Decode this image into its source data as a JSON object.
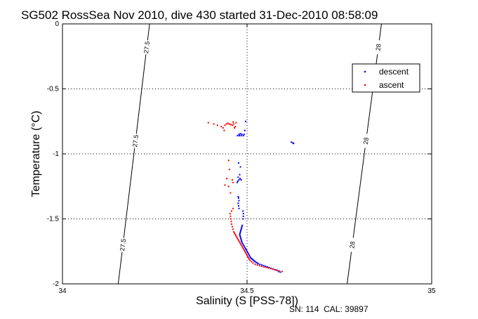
{
  "chart_data": {
    "type": "scatter",
    "title": "SG502 RossSea Nov 2010, dive 430 started 31-Dec-2010 08:58:09",
    "xlabel": "Salinity (S [PSS-78])",
    "ylabel": "Temperature (°C)",
    "xlim": [
      34,
      35
    ],
    "ylim": [
      -2,
      0
    ],
    "xticks": [
      "34",
      "34.5",
      "35"
    ],
    "yticks": [
      "0",
      "-0.5",
      "-1",
      "-1.5",
      "-2"
    ],
    "grid": true,
    "legend_position": "top-right",
    "footer": "SN: 114  CAL: 39897",
    "isopycnals": [
      {
        "label": "27.5",
        "points": [
          [
            34.151,
            -2.0
          ],
          [
            34.236,
            0.0
          ]
        ]
      },
      {
        "label": "28",
        "points": [
          [
            34.771,
            -2.0
          ],
          [
            34.864,
            0.0
          ]
        ]
      }
    ],
    "series": [
      {
        "name": "descent",
        "color": "#0000ff",
        "points": [
          [
            34.59,
            -1.91
          ],
          [
            34.585,
            -1.905
          ],
          [
            34.58,
            -1.895
          ],
          [
            34.575,
            -1.89
          ],
          [
            34.57,
            -1.885
          ],
          [
            34.565,
            -1.88
          ],
          [
            34.56,
            -1.875
          ],
          [
            34.555,
            -1.87
          ],
          [
            34.55,
            -1.865
          ],
          [
            34.545,
            -1.86
          ],
          [
            34.54,
            -1.855
          ],
          [
            34.535,
            -1.85
          ],
          [
            34.53,
            -1.845
          ],
          [
            34.528,
            -1.84
          ],
          [
            34.525,
            -1.835
          ],
          [
            34.522,
            -1.83
          ],
          [
            34.52,
            -1.825
          ],
          [
            34.518,
            -1.82
          ],
          [
            34.516,
            -1.815
          ],
          [
            34.514,
            -1.81
          ],
          [
            34.512,
            -1.805
          ],
          [
            34.51,
            -1.8
          ],
          [
            34.508,
            -1.79
          ],
          [
            34.506,
            -1.78
          ],
          [
            34.504,
            -1.77
          ],
          [
            34.502,
            -1.76
          ],
          [
            34.5,
            -1.75
          ],
          [
            34.498,
            -1.74
          ],
          [
            34.496,
            -1.73
          ],
          [
            34.494,
            -1.72
          ],
          [
            34.492,
            -1.71
          ],
          [
            34.49,
            -1.7
          ],
          [
            34.488,
            -1.69
          ],
          [
            34.486,
            -1.68
          ],
          [
            34.485,
            -1.67
          ],
          [
            34.484,
            -1.66
          ],
          [
            34.483,
            -1.65
          ],
          [
            34.482,
            -1.64
          ],
          [
            34.481,
            -1.63
          ],
          [
            34.48,
            -1.62
          ],
          [
            34.481,
            -1.61
          ],
          [
            34.482,
            -1.6
          ],
          [
            34.483,
            -1.59
          ],
          [
            34.484,
            -1.58
          ],
          [
            34.485,
            -1.57
          ],
          [
            34.486,
            -1.56
          ],
          [
            34.487,
            -1.55
          ],
          [
            34.489,
            -1.5
          ],
          [
            34.49,
            -1.48
          ],
          [
            34.49,
            -1.46
          ],
          [
            34.489,
            -1.44
          ],
          [
            34.478,
            -1.42
          ],
          [
            34.477,
            -1.4
          ],
          [
            34.476,
            -1.38
          ],
          [
            34.478,
            -1.36
          ],
          [
            34.477,
            -1.34
          ],
          [
            34.476,
            -1.33
          ],
          [
            34.473,
            -1.22
          ],
          [
            34.475,
            -1.21
          ],
          [
            34.478,
            -1.2
          ],
          [
            34.481,
            -1.19
          ],
          [
            34.484,
            -1.2
          ],
          [
            34.476,
            -1.18
          ],
          [
            34.48,
            -1.16
          ],
          [
            34.482,
            -1.1
          ],
          [
            34.477,
            -1.07
          ],
          [
            34.474,
            -0.86
          ],
          [
            34.478,
            -0.85
          ],
          [
            34.482,
            -0.845
          ],
          [
            34.486,
            -0.85
          ],
          [
            34.479,
            -0.86
          ],
          [
            34.484,
            -0.86
          ],
          [
            34.49,
            -0.86
          ],
          [
            34.492,
            -0.85
          ],
          [
            34.494,
            -0.82
          ],
          [
            34.62,
            -0.91
          ],
          [
            34.624,
            -0.915
          ],
          [
            34.626,
            -0.92
          ],
          [
            34.496,
            -0.75
          ]
        ]
      },
      {
        "name": "ascent",
        "color": "#ff0000",
        "points": [
          [
            34.595,
            -1.905
          ],
          [
            34.587,
            -1.9
          ],
          [
            34.582,
            -1.895
          ],
          [
            34.576,
            -1.892
          ],
          [
            34.57,
            -1.888
          ],
          [
            34.564,
            -1.883
          ],
          [
            34.558,
            -1.878
          ],
          [
            34.552,
            -1.874
          ],
          [
            34.546,
            -1.87
          ],
          [
            34.54,
            -1.866
          ],
          [
            34.534,
            -1.86
          ],
          [
            34.528,
            -1.855
          ],
          [
            34.522,
            -1.85
          ],
          [
            34.516,
            -1.84
          ],
          [
            34.512,
            -1.83
          ],
          [
            34.508,
            -1.82
          ],
          [
            34.506,
            -1.81
          ],
          [
            34.504,
            -1.8
          ],
          [
            34.502,
            -1.79
          ],
          [
            34.5,
            -1.78
          ],
          [
            34.498,
            -1.77
          ],
          [
            34.496,
            -1.76
          ],
          [
            34.494,
            -1.75
          ],
          [
            34.492,
            -1.74
          ],
          [
            34.49,
            -1.73
          ],
          [
            34.488,
            -1.72
          ],
          [
            34.486,
            -1.71
          ],
          [
            34.484,
            -1.7
          ],
          [
            34.482,
            -1.69
          ],
          [
            34.48,
            -1.68
          ],
          [
            34.478,
            -1.67
          ],
          [
            34.476,
            -1.66
          ],
          [
            34.474,
            -1.65
          ],
          [
            34.472,
            -1.64
          ],
          [
            34.47,
            -1.63
          ],
          [
            34.468,
            -1.62
          ],
          [
            34.466,
            -1.61
          ],
          [
            34.464,
            -1.6
          ],
          [
            34.462,
            -1.58
          ],
          [
            34.46,
            -1.56
          ],
          [
            34.458,
            -1.54
          ],
          [
            34.457,
            -1.52
          ],
          [
            34.456,
            -1.5
          ],
          [
            34.455,
            -1.48
          ],
          [
            34.454,
            -1.46
          ],
          [
            34.458,
            -1.44
          ],
          [
            34.462,
            -1.42
          ],
          [
            34.455,
            -1.3
          ],
          [
            34.45,
            -1.25
          ],
          [
            34.46,
            -1.2
          ],
          [
            34.462,
            -1.22
          ],
          [
            34.44,
            -1.24
          ],
          [
            34.445,
            -1.19
          ],
          [
            34.452,
            -1.12
          ],
          [
            34.45,
            -1.05
          ],
          [
            34.438,
            -0.82
          ],
          [
            34.44,
            -0.78
          ],
          [
            34.444,
            -0.77
          ],
          [
            34.448,
            -0.765
          ],
          [
            34.452,
            -0.77
          ],
          [
            34.456,
            -0.775
          ],
          [
            34.46,
            -0.78
          ],
          [
            34.464,
            -0.77
          ],
          [
            34.468,
            -0.79
          ],
          [
            34.466,
            -0.8
          ],
          [
            34.43,
            -0.79
          ],
          [
            34.435,
            -0.8
          ],
          [
            34.42,
            -0.78
          ],
          [
            34.41,
            -0.77
          ],
          [
            34.395,
            -0.76
          ],
          [
            34.47,
            -0.76
          ],
          [
            34.462,
            -0.755
          ]
        ]
      }
    ]
  }
}
